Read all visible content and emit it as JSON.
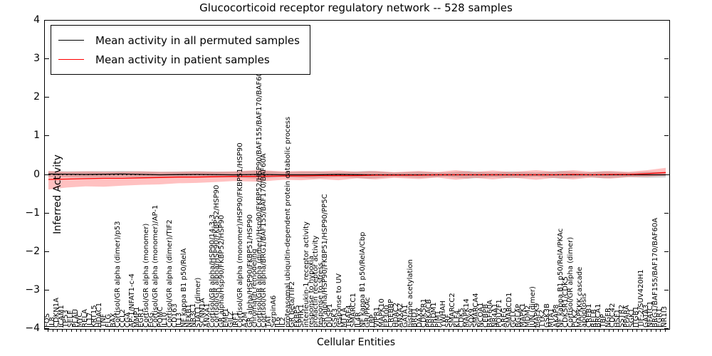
{
  "title": "Glucocorticoid receptor regulatory network -- 528 samples",
  "legend": {
    "items": [
      {
        "label": "Mean activity in all permuted samples",
        "color": "#000000"
      },
      {
        "label": "Mean activity in patient samples",
        "color": "#ff0000"
      }
    ],
    "position": "upper-left"
  },
  "chart_data": {
    "type": "line",
    "title": "Glucocorticoid receptor regulatory network -- 528 samples",
    "xlabel": "Cellular Entities",
    "ylabel": "Inferred Activity",
    "ylim": [
      -4,
      4
    ],
    "yticks": [
      4,
      3,
      2,
      1,
      0,
      -1,
      -2,
      -3,
      -4
    ],
    "grid": false,
    "zero_line_style": "dotted",
    "categories": [
      "FOS",
      "IL8",
      "CDKN1A",
      "ICAM1",
      "TP53",
      "SELE",
      "PLAU",
      "MYC",
      "RELA",
      "IL17",
      "KRT15",
      "HDAC1",
      "TNF",
      "FLG",
      "BAX",
      "Cortisol/GR alpha (dimer)/p53",
      "CCL2",
      "CGA",
      "AP-1/NFAT1-c-4",
      "MMP1",
      "EGR1",
      "Cortisol/GR alpha (monomer)",
      "FGG",
      "Cortisol/GR alpha (monomer)/AP-1",
      "POMC",
      "IL10",
      "Cortisol/GR alpha (dimer)/TIF2",
      "CD163",
      "IL13",
      "NF kappa B1 p50/RelA",
      "NFKB1",
      "NR3C1",
      "STAT1 (dimer)",
      "SCNN1A",
      "ANXA1",
      "Cortisol/GR alpha/HSP90/14-3-3",
      "Cortisol/GR alpha/HSP90/FKBP52/HSP90",
      "GR alpha/Hsp90/FKBP52/HSP90",
      "EMP1",
      "GILZ",
      "IRF1",
      "Cortisol/GR alpha (monomer)/HSP90/FKBP51/HSP90",
      "A2M",
      "GR alpha/HSP90/FKBP51/HSP90",
      "chromatin remodeling",
      "Cortisol/GR alpha (dimer)/Hsp90/FKBP52/HSP90/BAF155/BAF170/BAF60A/TIF2",
      "Cortisol/GR alpha/BRG1/BAF155/BAF170/BAF60A",
      "TAT",
      "SerpinA6",
      "IL6",
      "IL2",
      "proteasomal ubiquitin-dependent protein catabolic process",
      "GR beta/TIF2",
      "FKBP5",
      "SPHK1",
      "interleukin-1 receptor activity",
      "response to hypoxia",
      "prolactin receptor activity",
      "response to stress",
      "GR alpha/HSP90/FKBP51/HSP90/PP5C",
      "DUSP1",
      "GSK3",
      "response to UV",
      "MT1A",
      "TRAF4",
      "SMARCC1",
      "IL4R",
      "NF kappa B1 p50/RelA/Cbp",
      "GR/PKAc",
      "LBP",
      "VIPR1",
      "MAPK10",
      "EP300",
      "CREBBP",
      "HDAC2",
      "ANXA2",
      "GATA1",
      "histone acetylation",
      "BRD1",
      "DAXX",
      "CDK5R1",
      "PRKACB",
      "PRDM1",
      "PIM1",
      "YWHAH",
      "SRF",
      "SMARCC2",
      "KLF4",
      "CDK5",
      "MAPK14",
      "SOX9",
      "SMARCA4",
      "NCOA1",
      "CEBPB",
      "BAF60A",
      "NR4A1",
      "POU2F1",
      "AREG",
      "SMARCD1",
      "GCLC",
      "BGLAP",
      "MAPK1",
      "MDM2",
      "JUN (dimer)",
      "MAPK9",
      "TYK2",
      "GSK3B",
      "MTA1",
      "AKAP8",
      "NF kappa B1 p50/RelA/PKAc",
      "CDK5R1/CDK5",
      "Cortisol/GR alpha (dimer)",
      "PCK2",
      "MAPKKK cascade",
      "apoptosis",
      "CREB1",
      "RELB",
      "BRCA1",
      "TBP",
      "NGFR",
      "CDC42",
      "HSF1",
      "SSTR2",
      "PPARA",
      "SGK1",
      "ITGB1",
      "TIF-2/SUV420H1",
      "GATA3",
      "NFATC1",
      "BRG1/BAF155/BAF170/BAF60A",
      "EGR1",
      "NR1I3"
    ],
    "series": [
      {
        "name": "Mean activity in all permuted samples",
        "color": "#000000",
        "band_color": "rgba(130,130,130,0.35)",
        "points": [
          [
            0.0,
            0.02,
            -0.06,
            0.09
          ],
          [
            0.06,
            0.01,
            -0.07,
            0.09
          ],
          [
            0.12,
            0.02,
            -0.06,
            0.1
          ],
          [
            0.18,
            0.0,
            -0.08,
            0.08
          ],
          [
            0.24,
            0.01,
            -0.07,
            0.09
          ],
          [
            0.3,
            0.0,
            -0.07,
            0.08
          ],
          [
            0.34,
            0.01,
            -0.1,
            0.11
          ],
          [
            0.38,
            0.0,
            -0.06,
            0.07
          ],
          [
            0.43,
            0.0,
            -0.09,
            0.09
          ],
          [
            0.47,
            0.01,
            -0.06,
            0.07
          ],
          [
            0.52,
            0.0,
            -0.1,
            0.1
          ],
          [
            0.56,
            0.0,
            -0.05,
            0.06
          ],
          [
            0.6,
            0.0,
            -0.08,
            0.08
          ],
          [
            0.645,
            0.0,
            -0.05,
            0.06
          ],
          [
            0.68,
            0.0,
            -0.1,
            0.1
          ],
          [
            0.72,
            0.0,
            -0.06,
            0.06
          ],
          [
            0.75,
            0.0,
            -0.09,
            0.09
          ],
          [
            0.79,
            0.0,
            -0.05,
            0.06
          ],
          [
            0.83,
            0.0,
            -0.1,
            0.1
          ],
          [
            0.87,
            0.0,
            -0.06,
            0.06
          ],
          [
            0.9,
            0.0,
            -0.09,
            0.09
          ],
          [
            0.94,
            0.0,
            -0.06,
            0.06
          ],
          [
            0.97,
            0.0,
            -0.08,
            0.08
          ],
          [
            1.0,
            0.0,
            -0.07,
            0.07
          ]
        ]
      },
      {
        "name": "Mean activity in patient samples",
        "color": "#ff0000",
        "band_color": "rgba(255,50,50,0.30)",
        "points": [
          [
            0.0,
            -0.12,
            -0.38,
            0.1
          ],
          [
            0.03,
            -0.11,
            -0.33,
            0.08
          ],
          [
            0.06,
            -0.1,
            -0.3,
            0.09
          ],
          [
            0.09,
            -0.09,
            -0.31,
            0.08
          ],
          [
            0.12,
            -0.09,
            -0.28,
            0.08
          ],
          [
            0.15,
            -0.08,
            -0.26,
            0.09
          ],
          [
            0.18,
            -0.07,
            -0.25,
            0.08
          ],
          [
            0.21,
            -0.06,
            -0.22,
            0.08
          ],
          [
            0.24,
            -0.06,
            -0.21,
            0.09
          ],
          [
            0.27,
            -0.05,
            -0.19,
            0.08
          ],
          [
            0.3,
            -0.04,
            -0.16,
            0.09
          ],
          [
            0.34,
            -0.04,
            -0.18,
            0.12
          ],
          [
            0.38,
            -0.03,
            -0.13,
            0.09
          ],
          [
            0.41,
            -0.03,
            -0.14,
            0.1
          ],
          [
            0.44,
            -0.02,
            -0.11,
            0.09
          ],
          [
            0.47,
            -0.02,
            -0.14,
            0.11
          ],
          [
            0.5,
            -0.02,
            -0.09,
            0.08
          ],
          [
            0.53,
            -0.01,
            -0.12,
            0.1
          ],
          [
            0.56,
            -0.01,
            -0.08,
            0.07
          ],
          [
            0.6,
            -0.01,
            -0.11,
            0.1
          ],
          [
            0.63,
            0.0,
            -0.07,
            0.07
          ],
          [
            0.66,
            0.0,
            -0.13,
            0.12
          ],
          [
            0.69,
            0.0,
            -0.08,
            0.07
          ],
          [
            0.72,
            0.0,
            -0.12,
            0.11
          ],
          [
            0.75,
            0.0,
            -0.07,
            0.07
          ],
          [
            0.79,
            0.0,
            -0.13,
            0.12
          ],
          [
            0.82,
            0.0,
            -0.08,
            0.08
          ],
          [
            0.85,
            0.01,
            -0.12,
            0.12
          ],
          [
            0.88,
            0.0,
            -0.07,
            0.08
          ],
          [
            0.91,
            0.01,
            -0.1,
            0.1
          ],
          [
            0.94,
            0.01,
            -0.06,
            0.08
          ],
          [
            0.97,
            0.03,
            -0.05,
            0.12
          ],
          [
            1.0,
            0.06,
            -0.02,
            0.18
          ]
        ]
      }
    ]
  }
}
